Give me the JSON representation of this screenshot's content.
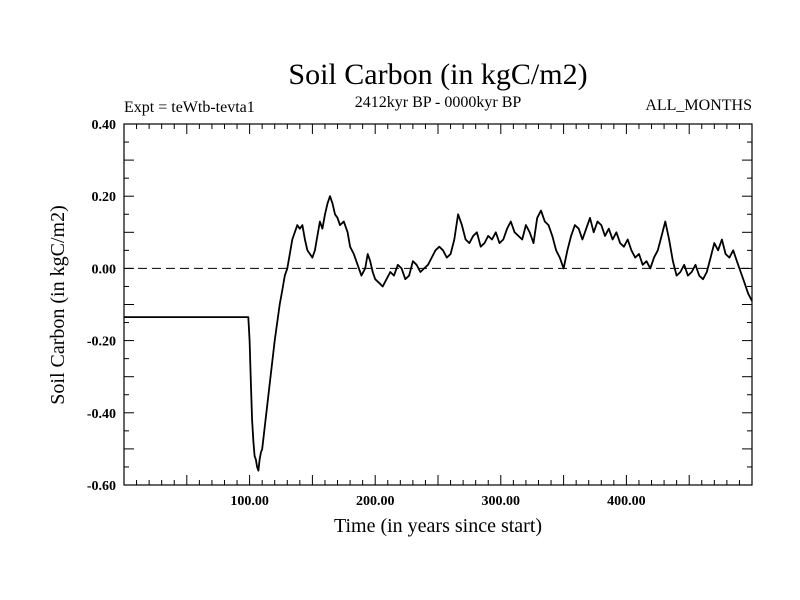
{
  "chart_data": {
    "type": "line",
    "title": "Soil Carbon (in kgC/m2)",
    "subtitle": "2412kyr BP - 0000kyr BP",
    "left_label": "Expt = teWtb-tevta1",
    "right_label": "ALL_MONTHS",
    "xlabel": "Time (in years since start)",
    "ylabel": "Soil Carbon (in kgC/m2)",
    "xlim": [
      0,
      500
    ],
    "ylim": [
      -0.6,
      0.4
    ],
    "x_ticks": [
      100,
      200,
      300,
      400
    ],
    "x_tick_labels": [
      "100.00",
      "200.00",
      "300.00",
      "400.00"
    ],
    "y_ticks": [
      -0.6,
      -0.4,
      -0.2,
      0.0,
      0.2,
      0.4
    ],
    "y_tick_labels": [
      "-0.60",
      "-0.40",
      "-0.20",
      "0.00",
      "0.20",
      "0.40"
    ],
    "reference_line": {
      "y": 0.0,
      "style": "dashed"
    },
    "series": [
      {
        "name": "Soil Carbon",
        "x": [
          0,
          50,
          99,
          100,
          101,
          102,
          103,
          104,
          105,
          106,
          107,
          108,
          109,
          110,
          112,
          114,
          116,
          118,
          120,
          122,
          124,
          126,
          128,
          130,
          132,
          134,
          136,
          138,
          140,
          142,
          144,
          146,
          148,
          150,
          152,
          154,
          156,
          158,
          160,
          162,
          164,
          166,
          168,
          170,
          172,
          175,
          178,
          180,
          183,
          186,
          189,
          192,
          194,
          196,
          198,
          200,
          203,
          206,
          209,
          212,
          215,
          218,
          221,
          224,
          227,
          230,
          233,
          236,
          239,
          242,
          245,
          248,
          251,
          254,
          257,
          260,
          263,
          266,
          269,
          272,
          275,
          278,
          281,
          284,
          287,
          290,
          293,
          296,
          299,
          302,
          305,
          308,
          311,
          314,
          317,
          320,
          323,
          326,
          329,
          332,
          335,
          338,
          341,
          344,
          347,
          350,
          353,
          356,
          359,
          362,
          365,
          368,
          371,
          374,
          377,
          380,
          383,
          386,
          389,
          392,
          395,
          398,
          401,
          404,
          407,
          410,
          413,
          416,
          419,
          422,
          425,
          428,
          431,
          434,
          437,
          440,
          443,
          446,
          449,
          452,
          455,
          458,
          461,
          464,
          467,
          470,
          473,
          476,
          479,
          482,
          485,
          488,
          491,
          494,
          497,
          500
        ],
        "y": [
          -0.135,
          -0.135,
          -0.135,
          -0.2,
          -0.32,
          -0.42,
          -0.48,
          -0.52,
          -0.53,
          -0.55,
          -0.56,
          -0.53,
          -0.51,
          -0.5,
          -0.44,
          -0.38,
          -0.32,
          -0.26,
          -0.2,
          -0.15,
          -0.1,
          -0.06,
          -0.02,
          0.0,
          0.04,
          0.08,
          0.1,
          0.12,
          0.11,
          0.12,
          0.08,
          0.05,
          0.04,
          0.03,
          0.05,
          0.09,
          0.13,
          0.11,
          0.15,
          0.18,
          0.2,
          0.18,
          0.15,
          0.14,
          0.12,
          0.13,
          0.1,
          0.06,
          0.04,
          0.01,
          -0.02,
          0.0,
          0.04,
          0.02,
          -0.01,
          -0.03,
          -0.04,
          -0.05,
          -0.03,
          -0.01,
          -0.02,
          0.01,
          0.0,
          -0.03,
          -0.02,
          0.02,
          0.01,
          -0.01,
          0.0,
          0.01,
          0.03,
          0.05,
          0.06,
          0.05,
          0.03,
          0.04,
          0.08,
          0.15,
          0.12,
          0.08,
          0.07,
          0.09,
          0.1,
          0.06,
          0.07,
          0.09,
          0.08,
          0.1,
          0.07,
          0.08,
          0.11,
          0.13,
          0.1,
          0.09,
          0.08,
          0.12,
          0.1,
          0.07,
          0.14,
          0.16,
          0.13,
          0.12,
          0.09,
          0.05,
          0.03,
          0.0,
          0.05,
          0.09,
          0.12,
          0.11,
          0.08,
          0.11,
          0.14,
          0.1,
          0.13,
          0.12,
          0.09,
          0.11,
          0.08,
          0.1,
          0.07,
          0.06,
          0.08,
          0.05,
          0.03,
          0.04,
          0.01,
          0.02,
          0.0,
          0.03,
          0.05,
          0.09,
          0.13,
          0.08,
          0.02,
          -0.02,
          -0.01,
          0.01,
          -0.02,
          -0.01,
          0.01,
          -0.02,
          -0.03,
          -0.01,
          0.03,
          0.07,
          0.05,
          0.08,
          0.04,
          0.03,
          0.05,
          0.02,
          -0.01,
          -0.04,
          -0.07,
          -0.09
        ]
      }
    ]
  }
}
